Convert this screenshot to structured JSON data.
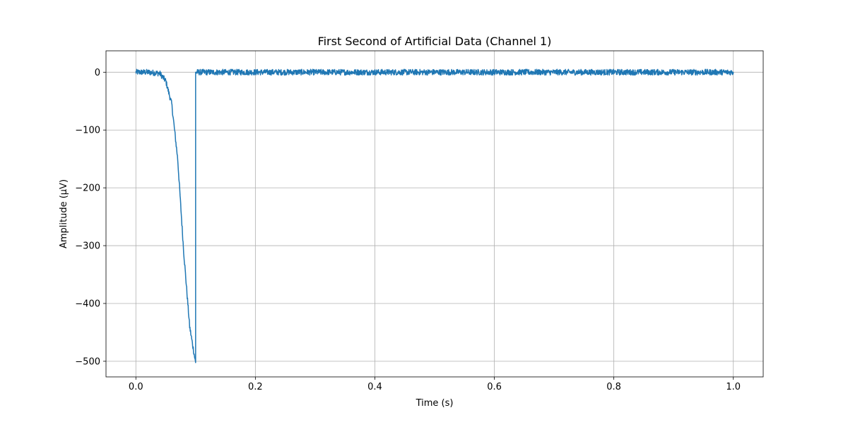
{
  "chart_data": {
    "type": "line",
    "title": "First Second of Artificial Data (Channel 1)",
    "xlabel": "Time (s)",
    "ylabel": "Amplitude (µV)",
    "xlim": [
      -0.05,
      1.05
    ],
    "ylim": [
      -527,
      37
    ],
    "x_ticks": [
      0.0,
      0.2,
      0.4,
      0.6,
      0.8,
      1.0
    ],
    "x_tick_labels": [
      "0.0",
      "0.2",
      "0.4",
      "0.6",
      "0.8",
      "1.0"
    ],
    "y_ticks": [
      0,
      -100,
      -200,
      -300,
      -400,
      -500
    ],
    "y_tick_labels": [
      "0",
      "−100",
      "−200",
      "−300",
      "−400",
      "−500"
    ],
    "grid": true,
    "series": [
      {
        "color": "#1f77b4",
        "x": [
          0.0,
          0.02,
          0.04,
          0.05,
          0.06,
          0.07,
          0.08,
          0.09,
          0.1,
          0.1,
          0.2,
          0.4,
          0.6,
          0.8,
          1.0
        ],
        "values": [
          0,
          0,
          -2,
          -15,
          -55,
          -150,
          -310,
          -440,
          -503,
          0,
          0,
          0,
          0,
          0,
          0
        ],
        "noise_amplitude": 5
      }
    ]
  }
}
